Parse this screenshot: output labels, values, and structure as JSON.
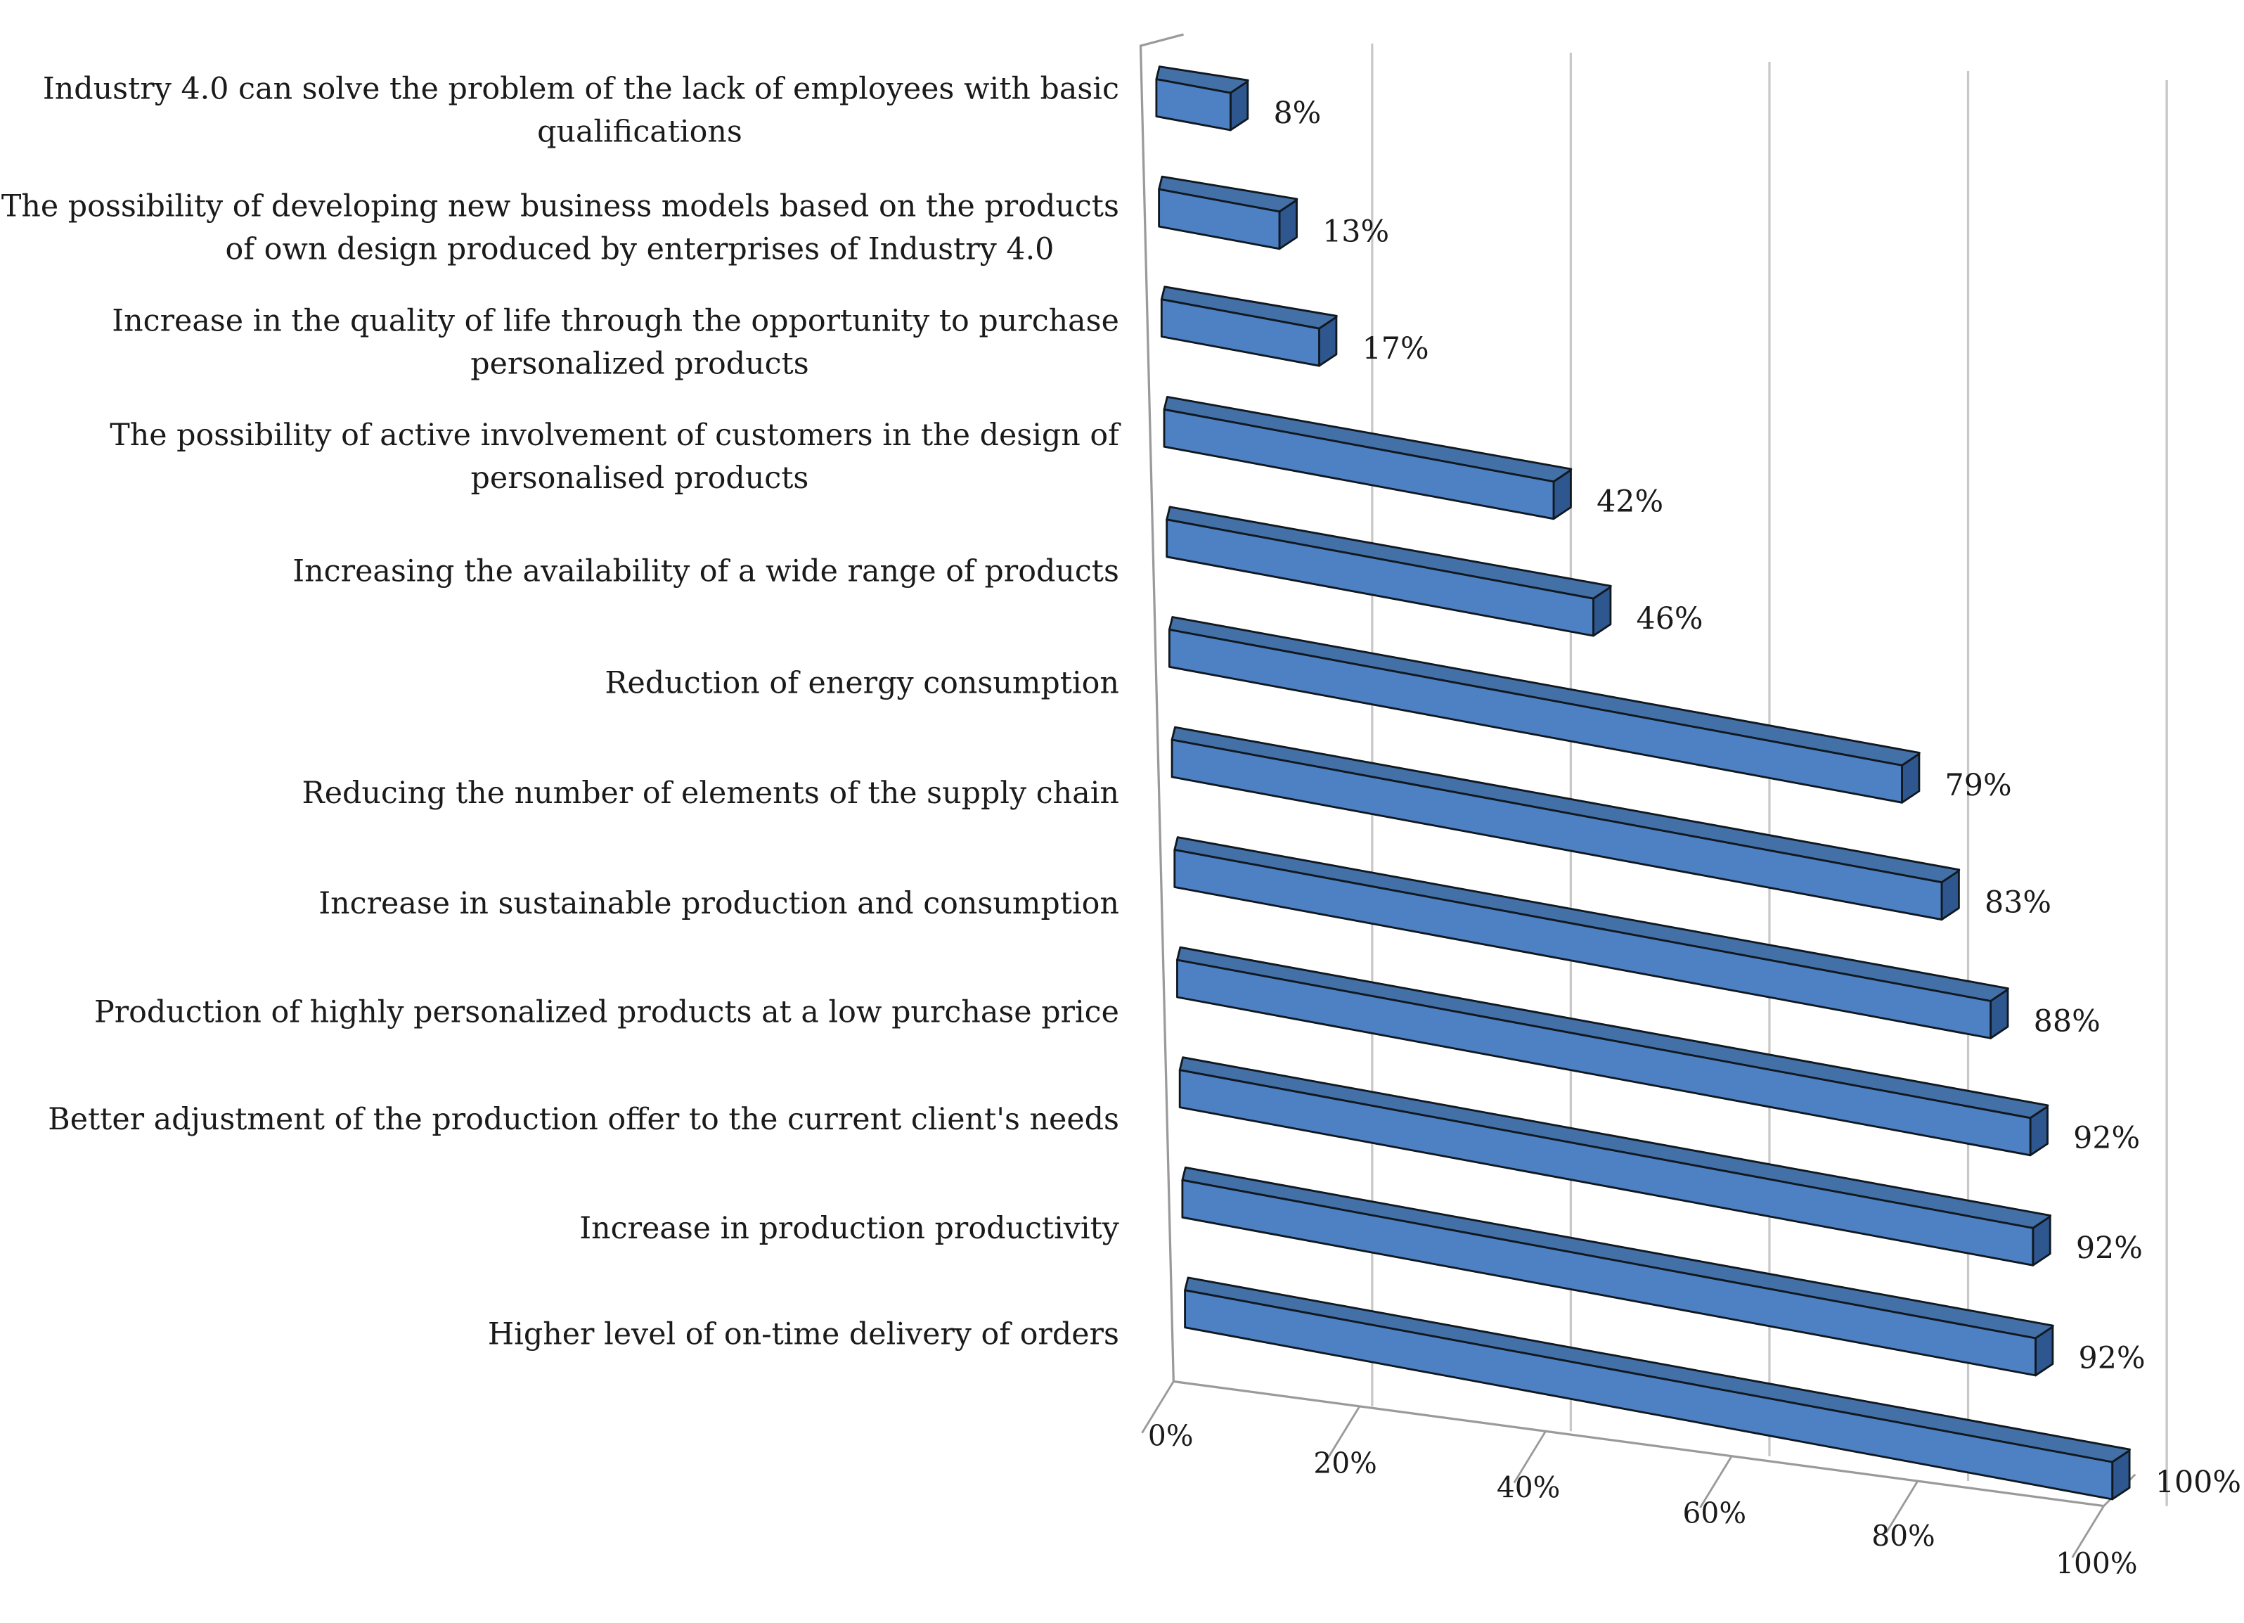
{
  "chart_data": {
    "type": "bar",
    "orientation": "horizontal",
    "style": "3d",
    "title": "",
    "xlabel": "",
    "ylabel": "",
    "xlim": [
      0,
      100
    ],
    "x_unit": "%",
    "grid": true,
    "categories": [
      "Industry 4.0 can solve the problem of the lack of employees with basic qualifications",
      "The possibility of developing new business models based on the products of own design produced by enterprises of Industry 4.0",
      "Increase in the quality of life through the opportunity to purchase personalized products",
      "The possibility of active involvement of customers in the design of personalised products",
      "Increasing the availability of a wide range of products",
      "Reduction of energy consumption",
      "Reducing the number of elements of the supply chain",
      "Increase in sustainable production and consumption",
      "Production of highly personalized products at a low purchase price",
      "Better adjustment of the production offer to the current client's needs",
      "Increase in production productivity",
      "Higher level of on-time delivery of orders"
    ],
    "category_lines": [
      [
        "Industry 4.0 can solve the problem of the lack of employees with basic",
        "qualifications"
      ],
      [
        "The possibility of developing new business models based on the products",
        "of own design produced by enterprises of Industry 4.0"
      ],
      [
        "Increase in the quality of life through the opportunity to purchase",
        "personalized products"
      ],
      [
        "The possibility of active involvement of customers in the design of",
        "personalised products"
      ],
      [
        "Increasing the availability of a wide range of products"
      ],
      [
        "Reduction of energy consumption"
      ],
      [
        "Reducing the number of elements of the supply chain"
      ],
      [
        "Increase in sustainable production and consumption"
      ],
      [
        "Production of highly personalized products at a low purchase price"
      ],
      [
        "Better adjustment of the production offer to the current client's needs"
      ],
      [
        "Increase in production productivity"
      ],
      [
        "Higher level of on-time delivery of orders"
      ]
    ],
    "values": [
      8,
      13,
      17,
      42,
      46,
      79,
      83,
      88,
      92,
      92,
      92,
      100
    ],
    "data_labels": [
      "8%",
      "13%",
      "17%",
      "42%",
      "46%",
      "79%",
      "83%",
      "88%",
      "92%",
      "92%",
      "92%",
      "100%"
    ],
    "x_ticks": [
      0,
      20,
      40,
      60,
      80,
      100
    ],
    "x_tick_labels": [
      "0%",
      "20%",
      "40%",
      "60%",
      "80%",
      "100%"
    ],
    "colors": {
      "bar_front": "#4E81C3",
      "bar_top": "#4470A8",
      "bar_side": "#2E578F",
      "bar_edge": "#101820",
      "grid": "#C8C8C8",
      "text": "#1A1A1A"
    }
  }
}
